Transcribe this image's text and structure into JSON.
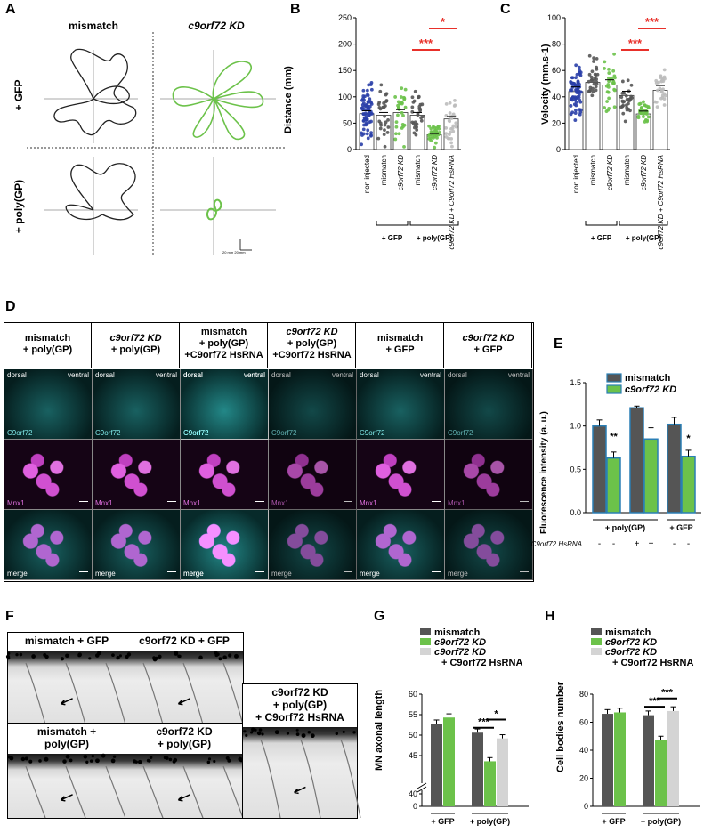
{
  "panels": {
    "A": {
      "label": "A",
      "col_headers": [
        "mismatch",
        "c9orf72 KD"
      ],
      "row_headers": [
        "+ GFP",
        "+ poly(GP)"
      ],
      "scale": [
        "20 mm",
        "20 mm"
      ]
    },
    "B": {
      "label": "B",
      "ylabel": "Distance (mm)",
      "yticks": [
        "0",
        "50",
        "100",
        "150",
        "200",
        "250"
      ],
      "categories": [
        "non injected",
        "mismatch",
        "c9orf72 KD",
        "mismatch",
        "c9orf72 KD",
        "c9orf72 KD + C9orf72 HsRNA"
      ],
      "groups": [
        "+ GFP",
        "+ poly(GP)"
      ],
      "sig": [
        "***",
        "*"
      ]
    },
    "C": {
      "label": "C",
      "ylabel": "Velocity (mm.s-1)",
      "yticks": [
        "0",
        "20",
        "40",
        "60",
        "80",
        "100"
      ],
      "categories": [
        "non injected",
        "mismatch",
        "c9orf72 KD",
        "mismatch",
        "c9orf72 KD",
        "c9orf72 KD + C9orf72 HsRNA"
      ],
      "groups": [
        "+ GFP",
        "+ poly(GP)"
      ],
      "sig": [
        "***",
        "***"
      ]
    },
    "D": {
      "label": "D",
      "columns": [
        {
          "l1": "mismatch",
          "l2": "+ poly(GP)",
          "l3": ""
        },
        {
          "l1": "c9orf72 KD",
          "l2": "+ poly(GP)",
          "l3": ""
        },
        {
          "l1": "mismatch",
          "l2": "+ poly(GP)",
          "l3": "+C9orf72 HsRNA"
        },
        {
          "l1": "c9orf72 KD",
          "l2": "+ poly(GP)",
          "l3": "+C9orf72 HsRNA"
        },
        {
          "l1": "mismatch",
          "l2": "+ GFP",
          "l3": ""
        },
        {
          "l1": "c9orf72 KD",
          "l2": "+ GFP",
          "l3": ""
        }
      ],
      "row_labels": [
        "C9orf72",
        "Mnx1",
        "merge"
      ],
      "dorsal": "dorsal",
      "ventral": "ventral"
    },
    "E": {
      "label": "E",
      "ylabel": "Fluorescence intensity (a. u.)",
      "yticks": [
        "0.0",
        "0.5",
        "1.0",
        "1.5"
      ],
      "legend": [
        "mismatch",
        "c9orf72 KD"
      ],
      "groups": [
        "+ poly(GP)",
        "+ GFP"
      ],
      "hsrna_label": "C9orf72 HsRNA",
      "hsrna_signs": [
        "-",
        "-",
        "+",
        "+",
        "-",
        "-"
      ],
      "sig": [
        "**",
        "*"
      ]
    },
    "F": {
      "label": "F",
      "cells": [
        {
          "t1": "mismatch + GFP",
          "t2": "",
          "t3": ""
        },
        {
          "t1": "c9orf72 KD + GFP",
          "t2": "",
          "t3": ""
        },
        {
          "t1": "mismatch +",
          "t2": "poly(GP)",
          "t3": ""
        },
        {
          "t1": "c9orf72 KD",
          "t2": "+ poly(GP)",
          "t3": ""
        },
        {
          "t1": "c9orf72 KD",
          "t2": "+ poly(GP)",
          "t3": "+ C9orf72 HsRNA"
        }
      ]
    },
    "G": {
      "label": "G",
      "ylabel": "MN axonal length",
      "yticks": [
        "0",
        "40",
        "45",
        "50",
        "55",
        "60"
      ],
      "legend": [
        "mismatch",
        "c9orf72 KD",
        "c9orf72 KD",
        "+ C9orf72 HsRNA"
      ],
      "groups": [
        "+ GFP",
        "+ poly(GP)"
      ],
      "sig": [
        "***",
        "*"
      ]
    },
    "H": {
      "label": "H",
      "ylabel": "Cell bodies number",
      "yticks": [
        "0",
        "20",
        "40",
        "60",
        "80"
      ],
      "legend": [
        "mismatch",
        "c9orf72 KD",
        "c9orf72 KD",
        "+ C9orf72 HsRNA"
      ],
      "groups": [
        "+ GFP",
        "+ poly(GP)"
      ],
      "sig": [
        "***",
        "***"
      ]
    }
  },
  "colors": {
    "mismatch": "#555555",
    "kd": "#6cc24a",
    "hsrna": "#d4d4d4",
    "blue": "#2a3fa8",
    "redsig": "#e8302a",
    "cyan": "#3cc8c8",
    "magenta": "#d050d0"
  },
  "chart_data": [
    {
      "type": "bar",
      "title": "",
      "ylabel": "Distance (mm)",
      "ylim": [
        0,
        250
      ],
      "categories": [
        "non injected",
        "mismatch +GFP",
        "c9orf72 KD +GFP",
        "mismatch +poly(GP)",
        "c9orf72 KD +poly(GP)",
        "c9orf72 KD +poly(GP) + C9orf72 HsRNA"
      ],
      "values": [
        68,
        65,
        70,
        65,
        28,
        58
      ]
    },
    {
      "type": "bar",
      "title": "",
      "ylabel": "Velocity (mm.s-1)",
      "ylim": [
        0,
        100
      ],
      "categories": [
        "non injected",
        "mismatch +GFP",
        "c9orf72 KD +GFP",
        "mismatch +poly(GP)",
        "c9orf72 KD +poly(GP)",
        "c9orf72 KD +poly(GP) + C9orf72 HsRNA"
      ],
      "values": [
        44,
        51,
        49,
        41,
        27,
        45
      ]
    },
    {
      "type": "bar",
      "title": "",
      "ylabel": "Fluorescence intensity (a. u.)",
      "ylim": [
        0,
        1.5
      ],
      "categories": [
        "+ poly(GP)",
        "+ poly(GP) + C9orf72 HsRNA",
        "+ GFP"
      ],
      "series": [
        {
          "name": "mismatch",
          "values": [
            1.0,
            1.21,
            1.02
          ]
        },
        {
          "name": "c9orf72 KD",
          "values": [
            0.63,
            0.85,
            0.65
          ]
        }
      ]
    },
    {
      "type": "bar",
      "title": "",
      "ylabel": "MN axonal length",
      "ylim": [
        40,
        60
      ],
      "categories": [
        "+ GFP",
        "+ poly(GP)"
      ],
      "series": [
        {
          "name": "mismatch",
          "values": [
            52.8,
            50.6
          ]
        },
        {
          "name": "c9orf72 KD",
          "values": [
            54.3,
            43.6
          ]
        },
        {
          "name": "c9orf72 KD + C9orf72 HsRNA",
          "values": [
            null,
            49.2
          ]
        }
      ]
    },
    {
      "type": "bar",
      "title": "",
      "ylabel": "Cell bodies number",
      "ylim": [
        0,
        80
      ],
      "categories": [
        "+ GFP",
        "+ poly(GP)"
      ],
      "series": [
        {
          "name": "mismatch",
          "values": [
            66,
            65
          ]
        },
        {
          "name": "c9orf72 KD",
          "values": [
            67,
            47
          ]
        },
        {
          "name": "c9orf72 KD + C9orf72 HsRNA",
          "values": [
            null,
            68
          ]
        }
      ]
    }
  ]
}
